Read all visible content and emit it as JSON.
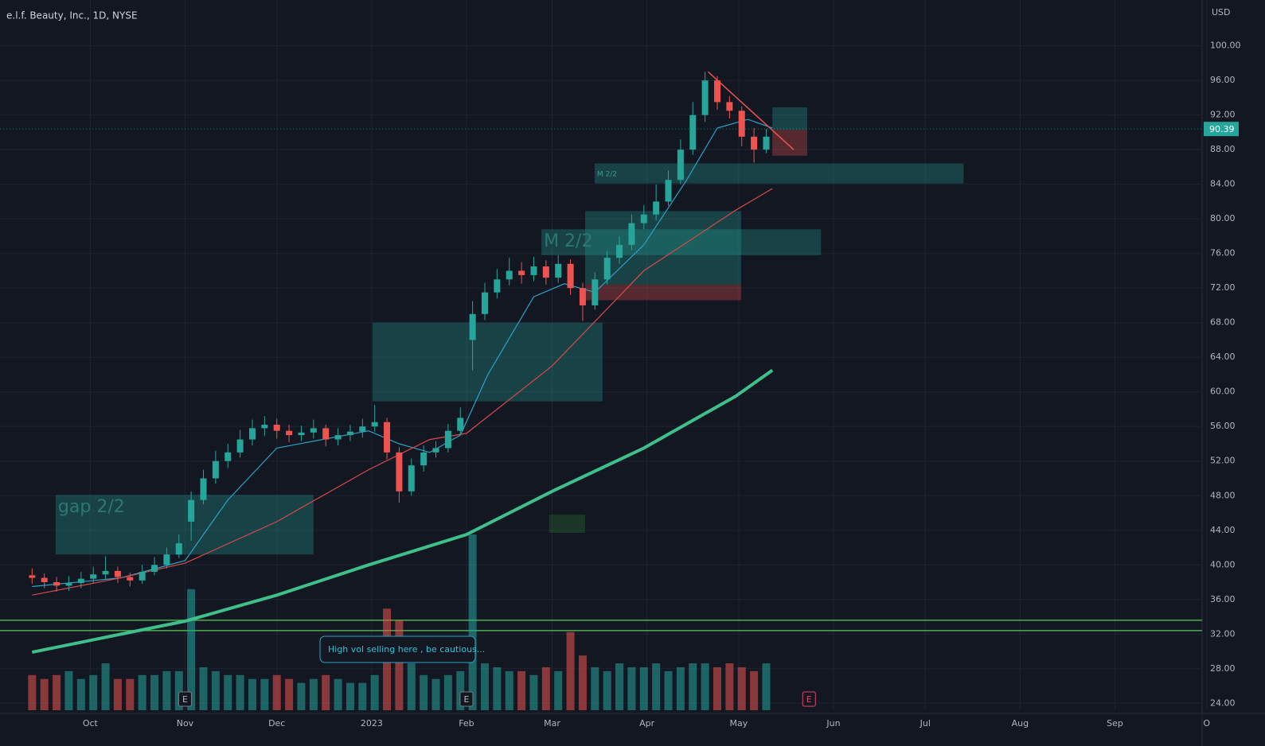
{
  "chart_data": {
    "type": "candlestick",
    "title": "e.l.f. Beauty, Inc., 1D, NYSE",
    "currency": "USD",
    "last_price": 90.39,
    "last_price_label": "90.39",
    "xlim": [
      0.5,
      393.5
    ],
    "ylim": [
      23.2,
      105.3
    ],
    "xticks": [
      {
        "value": 30,
        "label": "Oct"
      },
      {
        "value": 61,
        "label": "Nov"
      },
      {
        "value": 91,
        "label": "Dec"
      },
      {
        "value": 122,
        "label": "2023"
      },
      {
        "value": 153,
        "label": "Feb"
      },
      {
        "value": 181,
        "label": "Mar"
      },
      {
        "value": 212,
        "label": "Apr"
      },
      {
        "value": 242,
        "label": "May"
      },
      {
        "value": 273,
        "label": "Jun"
      },
      {
        "value": 303,
        "label": "Jul"
      },
      {
        "value": 334,
        "label": "Aug"
      },
      {
        "value": 365,
        "label": "Sep"
      },
      {
        "value": 395,
        "label": "O"
      }
    ],
    "yticks": [
      {
        "value": 24,
        "label": "24.00"
      },
      {
        "value": 28,
        "label": "28.00"
      },
      {
        "value": 32,
        "label": "32.00"
      },
      {
        "value": 36,
        "label": "36.00"
      },
      {
        "value": 40,
        "label": "40.00"
      },
      {
        "value": 44,
        "label": "44.00"
      },
      {
        "value": 48,
        "label": "48.00"
      },
      {
        "value": 52,
        "label": "52.00"
      },
      {
        "value": 56,
        "label": "56.00"
      },
      {
        "value": 60,
        "label": "60.00"
      },
      {
        "value": 64,
        "label": "64.00"
      },
      {
        "value": 68,
        "label": "68.00"
      },
      {
        "value": 72,
        "label": "72.00"
      },
      {
        "value": 76,
        "label": "76.00"
      },
      {
        "value": 80,
        "label": "80.00"
      },
      {
        "value": 84,
        "label": "84.00"
      },
      {
        "value": 88,
        "label": "88.00"
      },
      {
        "value": 92,
        "label": "92.00"
      },
      {
        "value": 96,
        "label": "96.00"
      },
      {
        "value": 100,
        "label": "100.00"
      }
    ],
    "grid": true,
    "up_color": "#26a69a",
    "down_color": "#ef5350",
    "x": [
      11,
      15,
      19,
      23,
      27,
      31,
      35,
      39,
      43,
      47,
      51,
      55,
      59,
      63,
      67,
      71,
      75,
      79,
      83,
      87,
      91,
      95,
      99,
      103,
      107,
      111,
      115,
      119,
      123,
      127,
      131,
      135,
      139,
      143,
      147,
      151,
      155,
      159,
      163,
      167,
      171,
      175,
      179,
      183,
      187,
      191,
      195,
      199,
      203,
      207,
      211,
      215,
      219,
      223,
      227,
      231,
      235,
      239,
      243,
      247,
      251
    ],
    "open": [
      38.8,
      38.5,
      38.0,
      37.6,
      37.9,
      38.4,
      38.9,
      39.3,
      38.6,
      38.2,
      39.2,
      40.0,
      41.2,
      45.0,
      47.5,
      50.0,
      52.0,
      53.0,
      54.5,
      55.8,
      56.2,
      55.5,
      55.0,
      55.3,
      55.8,
      54.5,
      55.0,
      55.4,
      56.0,
      56.5,
      53.0,
      48.5,
      51.5,
      53.0,
      53.5,
      55.5,
      66.0,
      69.0,
      71.5,
      73.0,
      74.0,
      73.5,
      74.5,
      73.2,
      74.8,
      72.0,
      70.0,
      73.0,
      75.5,
      77.0,
      79.5,
      80.5,
      82.0,
      84.5,
      88.0,
      92.0,
      96.0,
      93.5,
      92.5,
      89.5,
      88.0
    ],
    "high": [
      39.6,
      39.0,
      38.6,
      38.7,
      39.2,
      39.8,
      41.0,
      39.8,
      39.1,
      40.0,
      40.9,
      42.0,
      43.5,
      48.5,
      51.0,
      53.2,
      54.0,
      55.6,
      56.8,
      57.2,
      56.9,
      56.2,
      56.1,
      56.8,
      56.2,
      55.8,
      56.2,
      56.9,
      58.5,
      57.0,
      53.6,
      52.3,
      53.8,
      54.3,
      56.3,
      58.2,
      70.5,
      72.6,
      74.2,
      75.5,
      75.0,
      75.6,
      75.2,
      75.8,
      75.3,
      72.6,
      73.8,
      76.3,
      78.0,
      80.5,
      81.6,
      84.0,
      85.6,
      89.2,
      93.5,
      97.0,
      96.5,
      94.2,
      93.0,
      90.5,
      90.4
    ],
    "low": [
      37.8,
      37.3,
      36.9,
      37.0,
      37.3,
      37.9,
      38.4,
      37.9,
      37.5,
      37.8,
      38.8,
      39.6,
      40.8,
      42.8,
      47.0,
      49.4,
      51.2,
      52.4,
      53.8,
      54.9,
      54.6,
      54.2,
      54.3,
      54.6,
      53.7,
      53.8,
      54.3,
      54.7,
      55.4,
      52.2,
      47.2,
      48.0,
      50.8,
      52.4,
      53.0,
      55.0,
      62.5,
      68.3,
      70.8,
      72.3,
      72.5,
      72.8,
      72.4,
      72.6,
      71.2,
      68.2,
      69.5,
      72.4,
      74.8,
      76.4,
      78.8,
      79.8,
      81.5,
      84.0,
      87.4,
      91.2,
      92.6,
      91.6,
      88.4,
      86.5,
      87.6
    ],
    "close": [
      38.5,
      38.0,
      37.6,
      37.9,
      38.4,
      38.9,
      39.3,
      38.6,
      38.2,
      39.2,
      40.0,
      41.2,
      42.5,
      47.5,
      50.0,
      52.0,
      53.0,
      54.5,
      55.8,
      56.2,
      55.5,
      55.0,
      55.3,
      55.8,
      54.5,
      55.0,
      55.4,
      56.0,
      56.5,
      53.0,
      48.5,
      51.5,
      53.0,
      53.5,
      55.5,
      57.0,
      69.0,
      71.5,
      73.0,
      74.0,
      73.5,
      74.5,
      73.2,
      74.8,
      72.0,
      70.0,
      73.0,
      75.5,
      77.0,
      79.5,
      80.5,
      82.0,
      84.5,
      88.0,
      92.0,
      96.0,
      93.5,
      92.5,
      89.5,
      88.0,
      89.5
    ],
    "volume": [
      0.9,
      0.8,
      0.9,
      1.0,
      0.8,
      0.9,
      1.2,
      0.8,
      0.8,
      0.9,
      0.9,
      1.0,
      1.0,
      3.1,
      1.1,
      1.0,
      0.9,
      0.9,
      0.8,
      0.8,
      0.9,
      0.8,
      0.7,
      0.8,
      0.9,
      0.8,
      0.7,
      0.7,
      0.9,
      2.6,
      2.3,
      1.2,
      0.9,
      0.8,
      0.9,
      1.0,
      4.5,
      1.2,
      1.1,
      1.0,
      1.0,
      0.9,
      1.1,
      1.0,
      2.0,
      1.4,
      1.1,
      1.0,
      1.2,
      1.1,
      1.1,
      1.2,
      1.0,
      1.1,
      1.2,
      1.2,
      1.1,
      1.2,
      1.1,
      1.0,
      1.2
    ],
    "series": [
      {
        "color": "#2aa3c9",
        "width": 1.2,
        "x": [
          11,
          40,
          61,
          75,
          91,
          121,
          131,
          141,
          151,
          160,
          175,
          185,
          195,
          211,
          225,
          235,
          245,
          253
        ],
        "values": [
          37.5,
          38.5,
          40.5,
          47.5,
          53.5,
          55.5,
          54.0,
          53.0,
          55.0,
          62.0,
          71.0,
          72.5,
          71.5,
          77.0,
          84.5,
          90.5,
          91.5,
          90.5
        ]
      },
      {
        "color": "#d84a4a",
        "width": 1.2,
        "x": [
          11,
          40,
          61,
          91,
          121,
          141,
          153,
          181,
          211,
          241,
          253
        ],
        "values": [
          36.5,
          38.5,
          40.2,
          45.0,
          51.0,
          54.5,
          55.2,
          63.0,
          74.0,
          81.0,
          83.5
        ]
      },
      {
        "color": "#3fbf8a",
        "width": 4,
        "x": [
          11,
          61,
          91,
          121,
          153,
          181,
          211,
          241,
          253
        ],
        "values": [
          29.9,
          33.5,
          36.5,
          40.0,
          43.5,
          48.5,
          53.5,
          59.5,
          62.5
        ]
      }
    ],
    "hlines": [
      {
        "value": 33.6,
        "color": "#4caf50"
      },
      {
        "value": 32.4,
        "color": "#4caf50"
      }
    ],
    "zones": [
      {
        "x": [
          18.7,
          103
        ],
        "y": [
          41.2,
          48.1
        ],
        "color": "#26a69a",
        "label": "gap 2/2"
      },
      {
        "x": [
          122.3,
          197.5
        ],
        "y": [
          58.9,
          68.0
        ],
        "color": "#26a69a"
      },
      {
        "x": [
          191.8,
          242.8
        ],
        "y": [
          72.4,
          80.9
        ],
        "color": "#26a69a"
      },
      {
        "x": [
          191.8,
          242.8
        ],
        "y": [
          70.6,
          72.4
        ],
        "color": "#ef5350"
      },
      {
        "x": [
          177.5,
          268.9
        ],
        "y": [
          75.8,
          78.8
        ],
        "color": "#26a69a",
        "label": "M 2/2"
      },
      {
        "x": [
          194.9,
          315.5
        ],
        "y": [
          84.1,
          86.4
        ],
        "color": "#26a69a",
        "label": "M 2/2"
      },
      {
        "x": [
          180,
          191.8
        ],
        "y": [
          43.7,
          45.8
        ],
        "color": "#2e7d32"
      },
      {
        "x": [
          253,
          264.4
        ],
        "y": [
          90.3,
          92.9
        ],
        "color": "#26a69a"
      },
      {
        "x": [
          253,
          264.4
        ],
        "y": [
          87.3,
          90.3
        ],
        "color": "#ef5350"
      }
    ],
    "trendline": {
      "x": [
        232,
        260
      ],
      "y": [
        97,
        88
      ],
      "color": "#ef5350"
    },
    "earnings": {
      "x": [
        61,
        153,
        265
      ],
      "label": "E"
    },
    "annotation": "High vol selling here , be cautious..."
  }
}
